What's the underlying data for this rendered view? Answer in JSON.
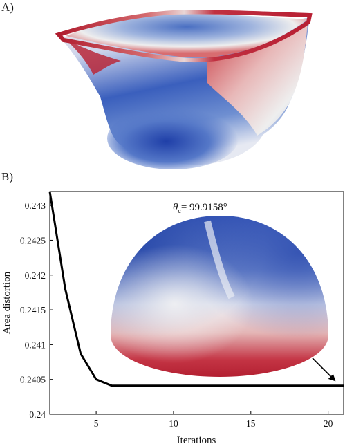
{
  "panels": {
    "a_label": "A)",
    "b_label": "B)"
  },
  "colors": {
    "red": "#b2182b",
    "white": "#f2f2f2",
    "blue": "#2143a8",
    "line": "#000000"
  },
  "annotation": {
    "theta_symbol": "θ",
    "theta_subscript": "c",
    "theta_value": "= 99.9158°"
  },
  "chart_data": {
    "type": "line",
    "xlabel": "Iterations",
    "ylabel": "Area distortion",
    "xlim": [
      2,
      21
    ],
    "ylim": [
      0.24,
      0.2432
    ],
    "x_ticks": [
      5,
      10,
      15,
      20
    ],
    "x_tick_labels": [
      "5",
      "10",
      "15",
      "20"
    ],
    "y_ticks": [
      0.24,
      0.2405,
      0.241,
      0.2415,
      0.242,
      0.2425,
      0.243
    ],
    "y_tick_labels": [
      "0.24",
      "0.2405",
      "0.241",
      "0.2415",
      "0.242",
      "0.2425",
      "0.243"
    ],
    "series": [
      {
        "x": [
          2,
          3,
          4,
          5,
          6,
          7,
          8,
          9,
          10,
          11,
          12,
          13,
          14,
          15,
          16,
          17,
          18,
          19,
          20,
          21
        ],
        "values": [
          0.2432,
          0.2418,
          0.24087,
          0.2405,
          0.24041,
          0.24041,
          0.24041,
          0.24041,
          0.24041,
          0.24041,
          0.24041,
          0.24041,
          0.24041,
          0.24041,
          0.24041,
          0.24041,
          0.24041,
          0.24041,
          0.24041,
          0.24041
        ]
      }
    ],
    "grid": false
  }
}
